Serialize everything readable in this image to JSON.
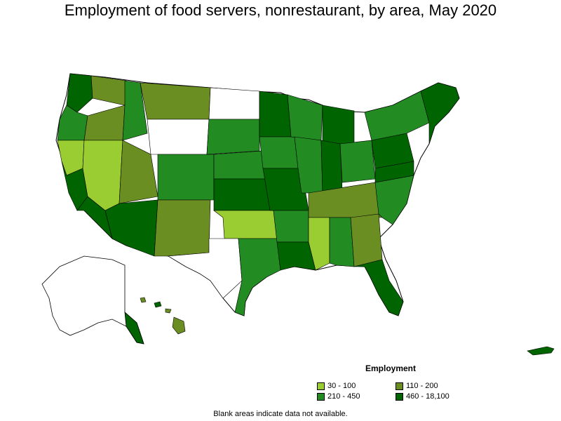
{
  "title": "Employment of food servers, nonrestaurant, by area, May 2020",
  "legend": {
    "title": "Employment",
    "items": [
      {
        "label": "30 - 100",
        "color": "#9acd32"
      },
      {
        "label": "110 - 200",
        "color": "#6b8e23"
      },
      {
        "label": "210 - 450",
        "color": "#228b22"
      },
      {
        "label": "460 - 18,100",
        "color": "#006400"
      }
    ]
  },
  "footnote": "Blank areas indicate data not available.",
  "colors": {
    "c1": "#9acd32",
    "c2": "#6b8e23",
    "c3": "#228b22",
    "c4": "#006400",
    "blank": "#ffffff",
    "border": "#000000"
  }
}
